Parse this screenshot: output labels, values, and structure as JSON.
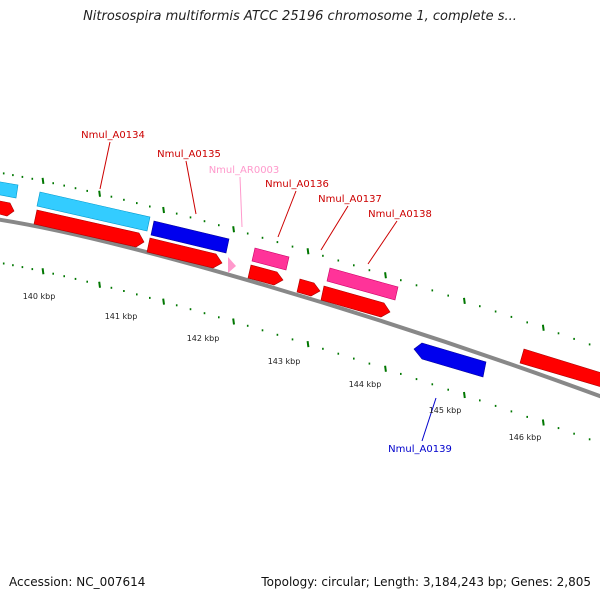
{
  "title": "Nitrosospira multiformis ATCC 25196 chromosome 1, complete s...",
  "footer": {
    "accession": "Accession: NC_007614",
    "summary": "Topology: circular; Length: 3,184,243 bp; Genes: 2,805"
  },
  "scale_labels": [
    "140 kbp",
    "141 kbp",
    "142 kbp",
    "143 kbp",
    "144 kbp",
    "145 kbp",
    "146 kbp"
  ],
  "colors": {
    "cds": "#ff0000",
    "gene_plus": "#33ccff",
    "gene_blue": "#0000ee",
    "gene_pink": "#ff3399",
    "rna": "#ff99cc",
    "backbone": "#888888",
    "ticks": "#007700",
    "label_red": "#cc0000",
    "label_pink": "#ff99cc",
    "label_blue": "#0000cc"
  },
  "gene_labels": [
    {
      "name": "Nmul_A0134",
      "color": "label_red"
    },
    {
      "name": "Nmul_A0135",
      "color": "label_red"
    },
    {
      "name": "Nmul_AR0003",
      "color": "label_pink"
    },
    {
      "name": "Nmul_A0136",
      "color": "label_red"
    },
    {
      "name": "Nmul_A0137",
      "color": "label_red"
    },
    {
      "name": "Nmul_A0138",
      "color": "label_red"
    },
    {
      "name": "Nmul_A0139",
      "color": "label_blue"
    }
  ]
}
